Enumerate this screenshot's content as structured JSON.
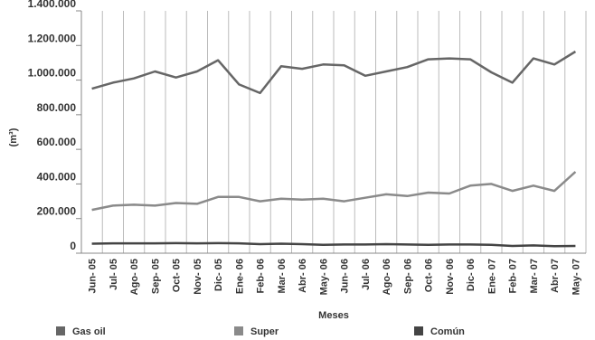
{
  "chart_data": {
    "type": "line",
    "title": "",
    "xlabel": "Meses",
    "ylabel": "(m³)",
    "ylim": [
      0,
      1400000
    ],
    "grid": {
      "vertical": true,
      "horizontal": false
    },
    "legend_position": "bottom-left",
    "y_ticks": [
      {
        "value": 0,
        "label": "0"
      },
      {
        "value": 200000,
        "label": "200.000"
      },
      {
        "value": 400000,
        "label": "400.000"
      },
      {
        "value": 600000,
        "label": "600.000"
      },
      {
        "value": 800000,
        "label": "800.000"
      },
      {
        "value": 1000000,
        "label": "1.000.000"
      },
      {
        "value": 1200000,
        "label": "1.200.000"
      },
      {
        "value": 1400000,
        "label": "1.400.000"
      }
    ],
    "categories": [
      "Jun- 05",
      "Jul- 05",
      "Ago- 05",
      "Sep- 05",
      "Oct- 05",
      "Nov- 05",
      "Dic- 05",
      "Ene- 06",
      "Feb- 06",
      "Mar- 06",
      "Abr- 06",
      "May- 06",
      "Jun- 06",
      "Jul- 06",
      "Ago- 06",
      "Sep- 06",
      "Oct- 06",
      "Nov- 06",
      "Dic- 06",
      "Ene- 07",
      "Feb- 07",
      "Mar- 07",
      "Abr- 07",
      "May- 07"
    ],
    "series": [
      {
        "name": "Gas oil",
        "color": "#666666",
        "values": [
          950000,
          985000,
          1010000,
          1050000,
          1015000,
          1050000,
          1115000,
          975000,
          925000,
          1080000,
          1065000,
          1090000,
          1085000,
          1025000,
          1050000,
          1075000,
          1120000,
          1125000,
          1120000,
          1045000,
          985000,
          1125000,
          1090000,
          1165000
        ]
      },
      {
        "name": "Super",
        "color": "#8a8a8a",
        "values": [
          250000,
          275000,
          280000,
          275000,
          290000,
          285000,
          325000,
          325000,
          300000,
          315000,
          310000,
          315000,
          300000,
          320000,
          340000,
          330000,
          350000,
          345000,
          390000,
          400000,
          360000,
          390000,
          360000,
          470000
        ]
      },
      {
        "name": "Común",
        "color": "#444444",
        "values": [
          55000,
          57000,
          57000,
          57000,
          58000,
          57000,
          58000,
          57000,
          52000,
          55000,
          52000,
          48000,
          50000,
          50000,
          52000,
          50000,
          48000,
          50000,
          50000,
          48000,
          42000,
          45000,
          40000,
          42000
        ]
      }
    ]
  }
}
